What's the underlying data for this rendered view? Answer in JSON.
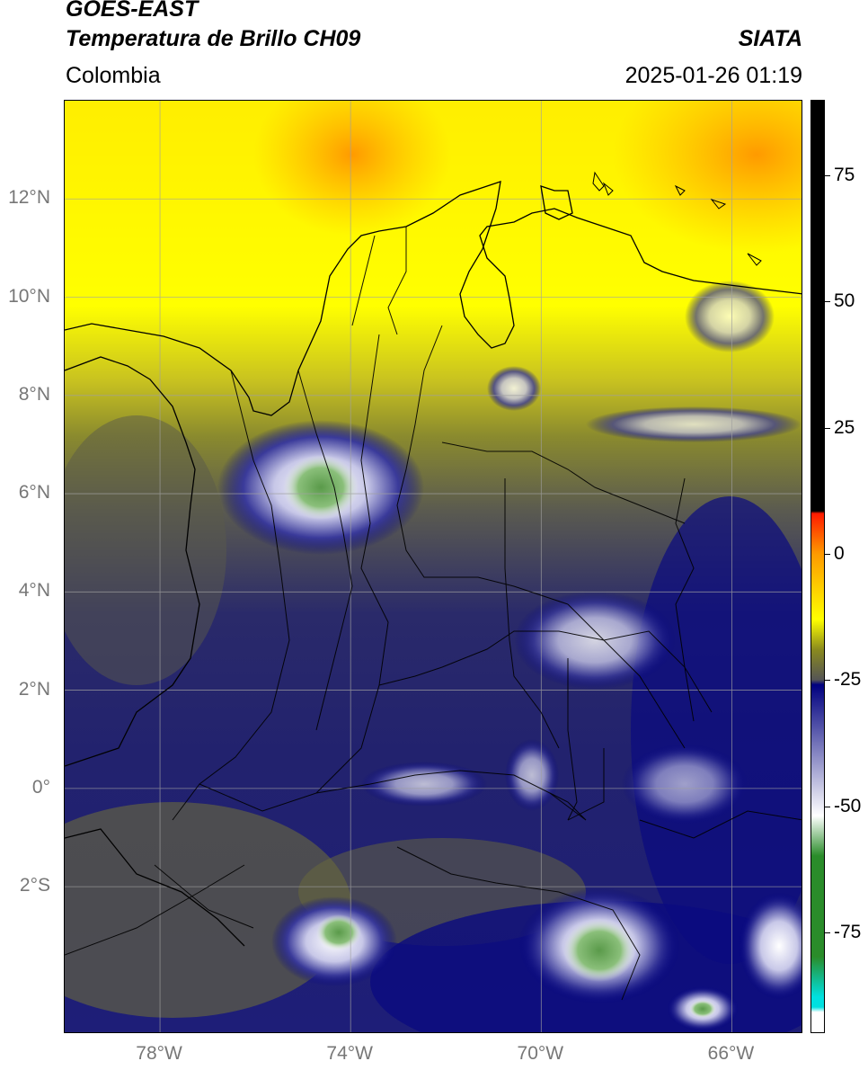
{
  "header": {
    "satellite": "GOES-EAST",
    "product": "Temperatura de Brillo CH09",
    "source": "SIATA",
    "region": "Colombia",
    "timestamp": "2025-01-26 01:19"
  },
  "map": {
    "lon_range": [
      -80,
      -64.5
    ],
    "lat_range": [
      -5.0,
      14.0
    ],
    "lat_ticks": [
      {
        "value": 12,
        "label": "12°N"
      },
      {
        "value": 10,
        "label": "10°N"
      },
      {
        "value": 8,
        "label": "8°N"
      },
      {
        "value": 6,
        "label": "6°N"
      },
      {
        "value": 4,
        "label": "4°N"
      },
      {
        "value": 2,
        "label": "2°N"
      },
      {
        "value": 0,
        "label": "0°"
      },
      {
        "value": -2,
        "label": "2°S"
      }
    ],
    "lon_ticks": [
      {
        "value": -78,
        "label": "78°W"
      },
      {
        "value": -74,
        "label": "74°W"
      },
      {
        "value": -70,
        "label": "70°W"
      },
      {
        "value": -66,
        "label": "66°W"
      }
    ]
  },
  "colorbar": {
    "range": [
      -95,
      90
    ],
    "ticks": [
      {
        "value": 75,
        "label": "75"
      },
      {
        "value": 50,
        "label": "50"
      },
      {
        "value": 25,
        "label": "25"
      },
      {
        "value": 0,
        "label": "0"
      },
      {
        "value": -25,
        "label": "-25"
      },
      {
        "value": -50,
        "label": "-50"
      },
      {
        "value": -75,
        "label": "-75"
      }
    ],
    "colors": {
      "black": "#000000",
      "red": "#ff1a00",
      "orange": "#ff9a00",
      "yellow": "#ffff00",
      "olive": "#8a8a1e",
      "gray": "#555555",
      "navy": "#00007f",
      "white": "#ffffff",
      "green": "#2a8c2a",
      "cyan": "#00e0e0"
    }
  }
}
